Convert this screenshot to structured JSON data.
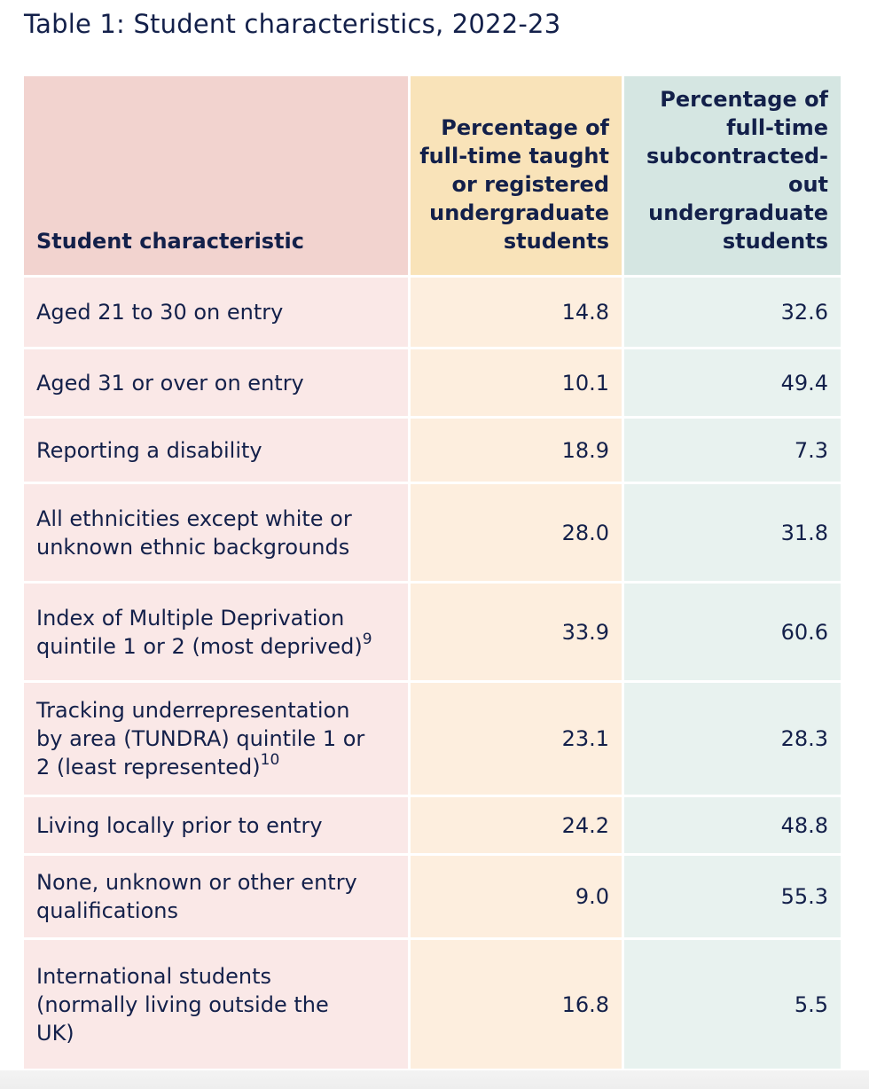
{
  "caption": "Table 1: Student characteristics, 2022-23",
  "headers": {
    "col1": "Student characteristic",
    "col2_lines": [
      "Percentage of",
      "full-time taught",
      "or registered",
      "undergraduate",
      "students"
    ],
    "col3_lines": [
      "Percentage of",
      "full-time",
      "subcontracted-",
      "out",
      "undergraduate",
      "students"
    ]
  },
  "rows": [
    {
      "lines": [
        "Aged 21 to 30 on entry"
      ],
      "sup": "",
      "taught": "14.8",
      "subcontracted": "32.6"
    },
    {
      "lines": [
        "Aged 31 or over on entry"
      ],
      "sup": "",
      "taught": "10.1",
      "subcontracted": "49.4"
    },
    {
      "lines": [
        "Reporting a disability"
      ],
      "sup": "",
      "taught": "18.9",
      "subcontracted": "7.3"
    },
    {
      "lines": [
        "All ethnicities except white or",
        "unknown ethnic backgrounds"
      ],
      "sup": "",
      "taught": "28.0",
      "subcontracted": "31.8"
    },
    {
      "lines": [
        "Index of Multiple Deprivation",
        "quintile 1 or 2 (most deprived)"
      ],
      "sup": "9",
      "taught": "33.9",
      "subcontracted": "60.6"
    },
    {
      "lines": [
        "Tracking underrepresentation",
        "by area (TUNDRA) quintile 1 or",
        "2 (least represented)"
      ],
      "sup": "10",
      "taught": "23.1",
      "subcontracted": "28.3"
    },
    {
      "lines": [
        "Living locally prior to entry"
      ],
      "sup": "",
      "taught": "24.2",
      "subcontracted": "48.8"
    },
    {
      "lines": [
        "None, unknown or other entry",
        "qualifications"
      ],
      "sup": "",
      "taught": "9.0",
      "subcontracted": "55.3"
    },
    {
      "lines": [
        "International students",
        "(normally living outside the",
        "UK)"
      ],
      "sup": "",
      "taught": "16.8",
      "subcontracted": "5.5"
    }
  ]
}
